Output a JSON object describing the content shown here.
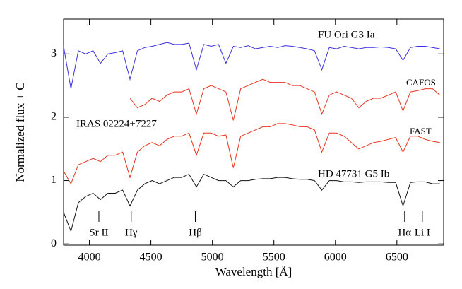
{
  "chart_data": {
    "type": "line",
    "x_label": "Wavelength [Å]",
    "y_label": "Normalized flux + C",
    "annotation": "IRAS 02224+7227",
    "xlim": [
      3790,
      6880
    ],
    "ylim": [
      -0.02,
      3.55
    ],
    "xticks": [
      4000,
      4500,
      5000,
      5500,
      6000,
      6500
    ],
    "yticks": [
      0,
      1,
      2,
      3
    ],
    "x": [
      3790,
      3850,
      3910,
      3970,
      4030,
      4090,
      4150,
      4210,
      4270,
      4330,
      4390,
      4450,
      4510,
      4570,
      4630,
      4690,
      4750,
      4810,
      4870,
      4930,
      4990,
      5050,
      5110,
      5170,
      5230,
      5290,
      5350,
      5410,
      5470,
      5530,
      5590,
      5650,
      5710,
      5770,
      5830,
      5890,
      5950,
      6010,
      6070,
      6130,
      6190,
      6250,
      6310,
      6370,
      6430,
      6490,
      6550,
      6610,
      6670,
      6730,
      6790,
      6850
    ],
    "series": [
      {
        "name": "FU Ori G3 Ia",
        "color": "#3a2fe0",
        "values": [
          3.12,
          2.45,
          3.05,
          3.0,
          3.05,
          2.85,
          3.0,
          3.02,
          3.05,
          2.6,
          3.05,
          3.1,
          3.12,
          3.15,
          3.18,
          3.15,
          3.15,
          3.17,
          2.75,
          3.15,
          3.12,
          3.15,
          2.85,
          3.12,
          3.1,
          3.13,
          3.08,
          3.1,
          3.12,
          3.1,
          3.13,
          3.12,
          3.1,
          3.08,
          3.05,
          2.75,
          3.1,
          3.08,
          3.12,
          3.1,
          3.08,
          3.1,
          3.1,
          3.11,
          3.1,
          3.08,
          2.9,
          3.1,
          3.12,
          3.12,
          3.1,
          3.08
        ]
      },
      {
        "name": "CAFOS",
        "color": "#e8321e",
        "values": [
          null,
          null,
          null,
          null,
          null,
          null,
          null,
          null,
          null,
          2.3,
          2.15,
          2.2,
          2.3,
          2.25,
          2.35,
          2.4,
          2.4,
          2.45,
          2.05,
          2.45,
          2.5,
          2.45,
          2.4,
          1.95,
          2.45,
          2.5,
          2.55,
          2.6,
          2.55,
          2.55,
          2.55,
          2.5,
          2.5,
          2.45,
          2.4,
          2.05,
          2.35,
          2.4,
          2.35,
          2.3,
          2.15,
          2.25,
          2.3,
          2.3,
          2.35,
          2.4,
          2.1,
          2.4,
          2.42,
          2.45,
          2.45,
          2.35
        ]
      },
      {
        "name": "FAST",
        "color": "#e8321e",
        "values": [
          1.15,
          0.95,
          1.25,
          1.3,
          1.35,
          1.3,
          1.4,
          1.4,
          1.45,
          1.05,
          1.45,
          1.55,
          1.6,
          1.55,
          1.65,
          1.7,
          1.7,
          1.75,
          1.4,
          1.75,
          1.75,
          1.7,
          1.72,
          1.2,
          1.7,
          1.75,
          1.8,
          1.85,
          1.85,
          1.9,
          1.9,
          1.88,
          1.85,
          1.85,
          1.8,
          1.45,
          1.75,
          1.75,
          1.7,
          1.6,
          1.5,
          1.55,
          1.6,
          1.62,
          1.65,
          1.68,
          1.45,
          1.7,
          1.7,
          1.65,
          1.62,
          1.6
        ]
      },
      {
        "name": "HD 47731 G5 Ib",
        "color": "#111111",
        "values": [
          0.5,
          0.2,
          0.65,
          0.75,
          0.8,
          0.7,
          0.8,
          0.8,
          0.85,
          0.6,
          0.85,
          0.95,
          1.0,
          0.95,
          1.0,
          1.05,
          1.05,
          1.1,
          0.9,
          1.1,
          1.05,
          1.0,
          1.0,
          0.9,
          1.0,
          1.0,
          1.02,
          1.03,
          1.03,
          1.05,
          1.05,
          1.03,
          1.02,
          1.02,
          1.0,
          0.85,
          1.0,
          1.0,
          0.98,
          0.98,
          0.97,
          0.98,
          0.98,
          0.98,
          0.97,
          0.97,
          0.6,
          0.97,
          0.98,
          0.98,
          0.95,
          0.95
        ]
      }
    ],
    "line_markers": [
      {
        "label": "Sr II",
        "x": 4077
      },
      {
        "label": "Hγ",
        "x": 4340
      },
      {
        "label": "Hβ",
        "x": 4861
      },
      {
        "label": "Hα",
        "x": 6563
      },
      {
        "label": "Li I",
        "x": 6707
      }
    ]
  }
}
